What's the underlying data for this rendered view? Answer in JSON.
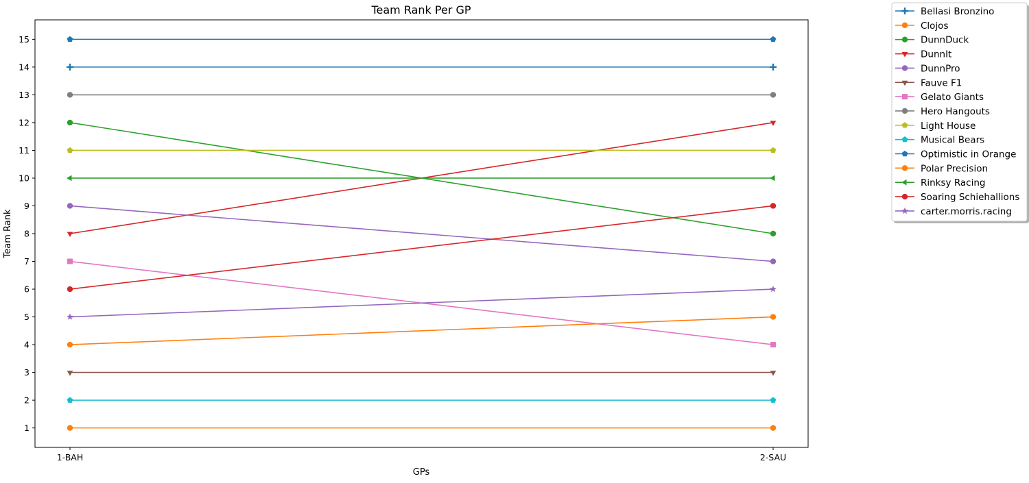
{
  "chart_data": {
    "type": "line",
    "title": "Team Rank Per GP",
    "xlabel": "GPs",
    "ylabel": "Team Rank",
    "categories": [
      "1-BAH",
      "2-SAU"
    ],
    "yticks": [
      1,
      2,
      3,
      4,
      5,
      6,
      7,
      8,
      9,
      10,
      11,
      12,
      13,
      14,
      15
    ],
    "ylim": [
      0.3,
      15.7
    ],
    "grid": false,
    "legend_position": "outside-top-right",
    "series": [
      {
        "name": "Bellasi Bronzino",
        "values": [
          14,
          14
        ],
        "color": "#1f77b4",
        "marker": "plus"
      },
      {
        "name": "Clojos",
        "values": [
          1,
          1
        ],
        "color": "#ff7f0e",
        "marker": "circle"
      },
      {
        "name": "DunnDuck",
        "values": [
          12,
          8
        ],
        "color": "#2ca02c",
        "marker": "circle"
      },
      {
        "name": "DunnIt",
        "values": [
          8,
          12
        ],
        "color": "#d62728",
        "marker": "triangle-down"
      },
      {
        "name": "DunnPro",
        "values": [
          9,
          7
        ],
        "color": "#9467bd",
        "marker": "circle"
      },
      {
        "name": "Fauve F1",
        "values": [
          3,
          3
        ],
        "color": "#8c564b",
        "marker": "triangle-down"
      },
      {
        "name": "Gelato Giants",
        "values": [
          7,
          4
        ],
        "color": "#e377c2",
        "marker": "square"
      },
      {
        "name": "Hero Hangouts",
        "values": [
          13,
          13
        ],
        "color": "#7f7f7f",
        "marker": "circle"
      },
      {
        "name": "Light House",
        "values": [
          11,
          11
        ],
        "color": "#bcbd22",
        "marker": "pentagon"
      },
      {
        "name": "Musical Bears",
        "values": [
          2,
          2
        ],
        "color": "#17becf",
        "marker": "pentagon"
      },
      {
        "name": "Optimistic in Orange",
        "values": [
          15,
          15
        ],
        "color": "#1f77b4",
        "marker": "pentagon"
      },
      {
        "name": "Polar Precision",
        "values": [
          4,
          5
        ],
        "color": "#ff7f0e",
        "marker": "circle"
      },
      {
        "name": "Rinksy Racing",
        "values": [
          10,
          10
        ],
        "color": "#2ca02c",
        "marker": "triangle-left"
      },
      {
        "name": "Soaring Schiehallions",
        "values": [
          6,
          9
        ],
        "color": "#d62728",
        "marker": "circle"
      },
      {
        "name": "carter.morris.racing",
        "values": [
          5,
          6
        ],
        "color": "#9467bd",
        "marker": "star"
      }
    ]
  }
}
